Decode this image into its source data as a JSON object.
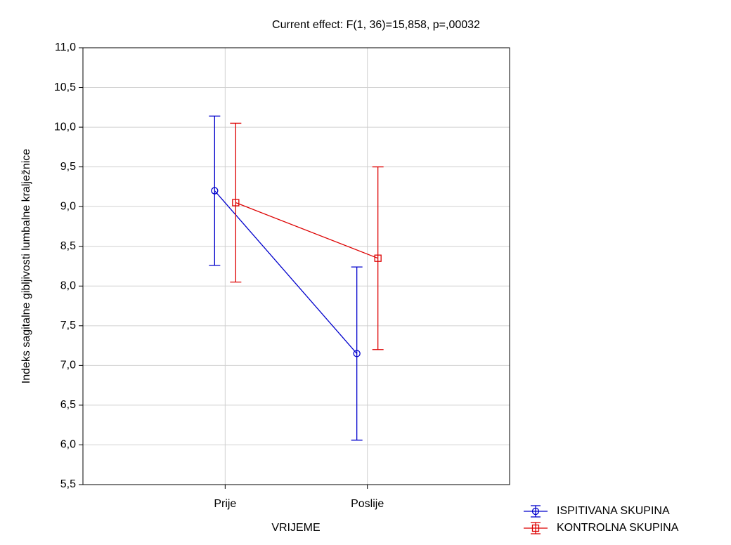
{
  "chart_data": {
    "type": "line",
    "title": "Current effect: F(1, 36)=15,858, p=,00032",
    "x_label": "VRIJEME",
    "y_label": "Indeks sagitalne gibljivosti lumbalne kralježnice",
    "categories": [
      "Prije",
      "Poslije"
    ],
    "series": [
      {
        "name": "ISPITIVANA SKUPINA",
        "color": "#0000cc",
        "marker": "circle",
        "values": [
          9.2,
          7.15
        ],
        "errors": [
          0.94,
          1.09
        ]
      },
      {
        "name": "KONTROLNA SKUPINA",
        "color": "#dd0000",
        "marker": "square",
        "values": [
          9.05,
          8.35
        ],
        "errors": [
          1.0,
          1.15
        ]
      }
    ],
    "ylim": [
      5.5,
      11.0
    ],
    "yticks": [
      {
        "value": 5.5,
        "label": "5,5"
      },
      {
        "value": 6.0,
        "label": "6,0"
      },
      {
        "value": 6.5,
        "label": "6,5"
      },
      {
        "value": 7.0,
        "label": "7,0"
      },
      {
        "value": 7.5,
        "label": "7,5"
      },
      {
        "value": 8.0,
        "label": "8,0"
      },
      {
        "value": 8.5,
        "label": "8,5"
      },
      {
        "value": 9.0,
        "label": "9,0"
      },
      {
        "value": 9.5,
        "label": "9,5"
      },
      {
        "value": 10.0,
        "label": "10,0"
      },
      {
        "value": 10.5,
        "label": "10,5"
      },
      {
        "value": 11.0,
        "label": "11,0"
      }
    ],
    "grid": true
  }
}
